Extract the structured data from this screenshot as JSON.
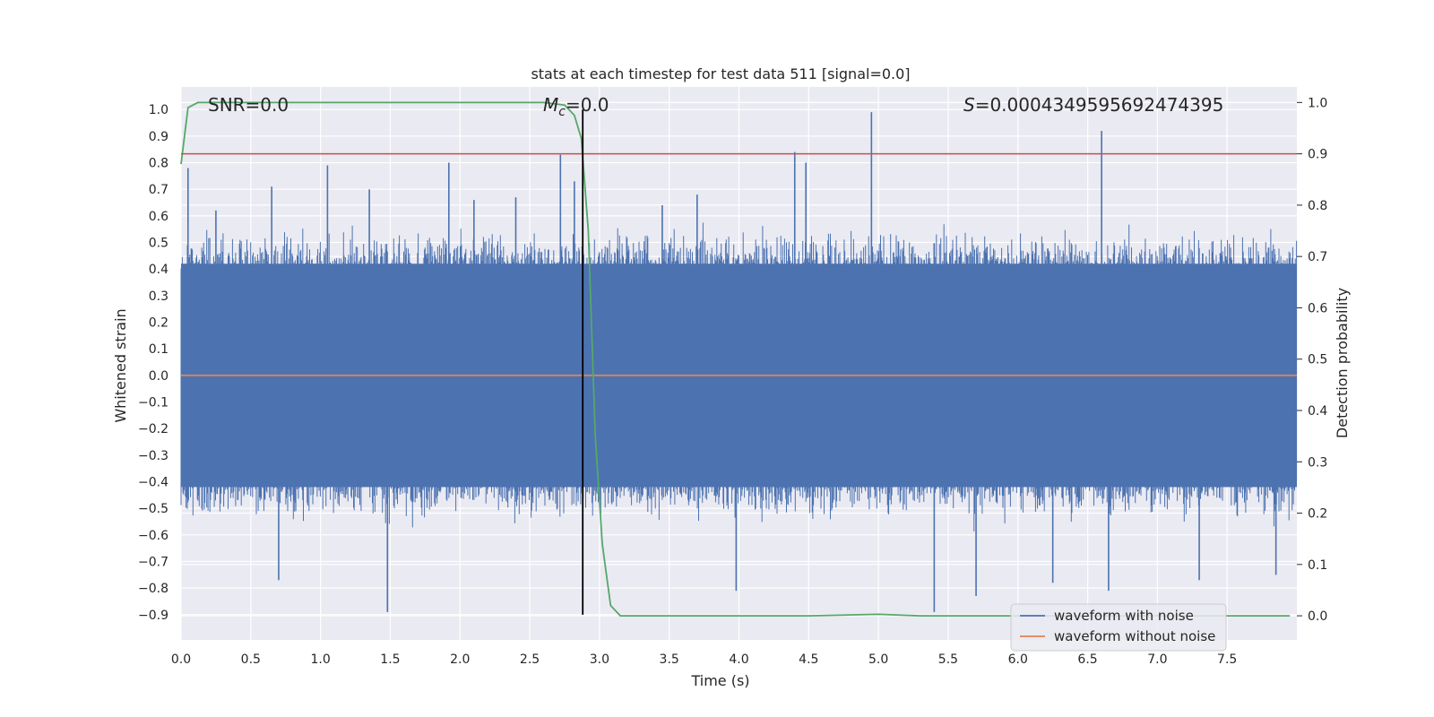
{
  "chart_data": {
    "type": "line",
    "title": "stats at each timestep for test data 511 [signal=0.0]",
    "xlabel": "Time (s)",
    "ylabel": "Whitened strain",
    "ylabel_right": "Detection probability",
    "xlim": [
      0.0,
      8.0
    ],
    "ylim": [
      -0.995,
      1.085
    ],
    "ylim_right": [
      -0.047,
      1.0303
    ],
    "x_ticks": [
      "0.0",
      "0.5",
      "1.0",
      "1.5",
      "2.0",
      "2.5",
      "3.0",
      "3.5",
      "4.0",
      "4.5",
      "5.0",
      "5.5",
      "6.0",
      "6.5",
      "7.0",
      "7.5"
    ],
    "y_ticks": [
      "1.0",
      "0.9",
      "0.8",
      "0.7",
      "0.6",
      "0.5",
      "0.4",
      "0.3",
      "0.2",
      "0.1",
      "0.0",
      "−0.1",
      "−0.2",
      "−0.3",
      "−0.4",
      "−0.5",
      "−0.6",
      "−0.7",
      "−0.8",
      "−0.9"
    ],
    "y_ticks_right": [
      "1.0",
      "0.9",
      "0.8",
      "0.7",
      "0.6",
      "0.5",
      "0.4",
      "0.3",
      "0.2",
      "0.1",
      "0.0"
    ],
    "grid": true,
    "legend_position": "bottom-right",
    "annotations": {
      "snr": "SNR=0.0",
      "mc_symbol": "M",
      "mc_sub": "c",
      "mc_value": "=0.0",
      "s_symbol": "S",
      "s_value": "=0.0004349595692474395"
    },
    "series": [
      {
        "name": "waveform with noise",
        "color": "#4c72b0",
        "axis": "left",
        "x_range": [
          0.0,
          8.0
        ],
        "envelope_band": [
          -0.42,
          0.42
        ],
        "peak_spikes": [
          {
            "x": 0.05,
            "y": 0.78
          },
          {
            "x": 0.25,
            "y": 0.62
          },
          {
            "x": 0.65,
            "y": 0.71
          },
          {
            "x": 0.7,
            "y": -0.77
          },
          {
            "x": 1.05,
            "y": 0.79
          },
          {
            "x": 1.35,
            "y": 0.7
          },
          {
            "x": 1.48,
            "y": -0.89
          },
          {
            "x": 1.92,
            "y": 0.8
          },
          {
            "x": 2.1,
            "y": 0.66
          },
          {
            "x": 2.4,
            "y": 0.67
          },
          {
            "x": 2.72,
            "y": 0.83
          },
          {
            "x": 2.82,
            "y": 0.73
          },
          {
            "x": 3.45,
            "y": 0.64
          },
          {
            "x": 3.7,
            "y": 0.68
          },
          {
            "x": 3.98,
            "y": -0.81
          },
          {
            "x": 4.4,
            "y": 0.84
          },
          {
            "x": 4.48,
            "y": 0.8
          },
          {
            "x": 4.95,
            "y": 0.99
          },
          {
            "x": 5.4,
            "y": -0.89
          },
          {
            "x": 5.7,
            "y": -0.83
          },
          {
            "x": 6.25,
            "y": -0.78
          },
          {
            "x": 6.6,
            "y": 0.92
          },
          {
            "x": 6.65,
            "y": -0.81
          },
          {
            "x": 7.3,
            "y": -0.77
          },
          {
            "x": 7.85,
            "y": -0.75
          }
        ]
      },
      {
        "name": "waveform without noise",
        "color": "#dd8452",
        "axis": "left",
        "x": [
          0.0,
          8.0
        ],
        "y": [
          0.0,
          0.0
        ]
      },
      {
        "name": "",
        "color": "#55a868",
        "axis": "right",
        "x": [
          0.0,
          0.05,
          0.12,
          0.5,
          1.0,
          2.0,
          2.6,
          2.75,
          2.82,
          2.87,
          2.92,
          2.97,
          3.02,
          3.08,
          3.15,
          3.3,
          4.5,
          5.0,
          5.3,
          6.0,
          7.0,
          7.95
        ],
        "y": [
          0.88,
          0.99,
          1.0,
          1.0,
          1.0,
          1.0,
          1.0,
          0.995,
          0.975,
          0.93,
          0.75,
          0.35,
          0.14,
          0.02,
          0.0,
          0.0,
          0.0,
          0.003,
          0.0,
          0.0,
          0.0,
          0.0
        ]
      }
    ],
    "reference_lines": [
      {
        "type": "horizontal",
        "axis": "right",
        "value": 0.9,
        "color": "#c44e52"
      },
      {
        "type": "vertical",
        "x": 2.88,
        "y_from": -0.9,
        "y_to": 1.0,
        "color": "#000000"
      }
    ]
  }
}
